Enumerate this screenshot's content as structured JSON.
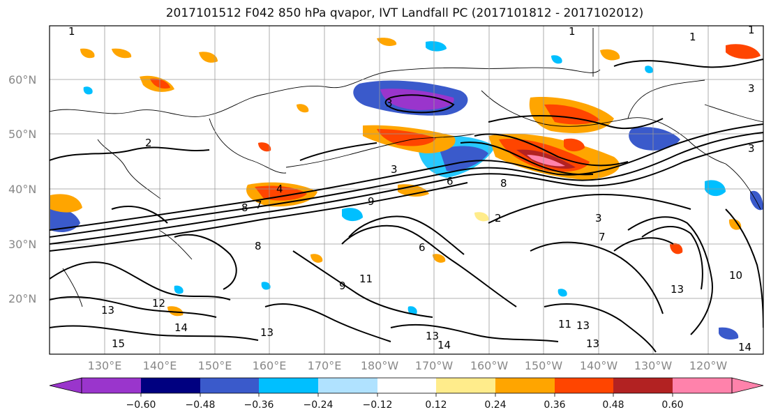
{
  "title": "2017101512 F042 850 hPa qvapor, IVT Landfall PC (2017101812 - 2017102012)",
  "lat_labels": [
    "60°N",
    "50°N",
    "40°N",
    "30°N",
    "20°N"
  ],
  "lon_labels": [
    "130°E",
    "140°E",
    "150°E",
    "160°E",
    "170°E",
    "180°W",
    "170°W",
    "160°W",
    "150°W",
    "140°W",
    "130°W",
    "120°W"
  ],
  "colorbar": {
    "colors": [
      "#9a35cc",
      "#000080",
      "#3a5acb",
      "#00bfff",
      "#b0e2ff",
      "#ffffff",
      "#ffec8b",
      "#ffa500",
      "#ff4500",
      "#b22222",
      "#ff82ab"
    ],
    "tick_labels": [
      "−0.60",
      "−0.48",
      "−0.36",
      "−0.24",
      "−0.12",
      "0.12",
      "0.24",
      "0.36",
      "0.48",
      "0.60"
    ]
  },
  "contour_labels": [
    "1",
    "1",
    "1",
    "1",
    "3",
    "3",
    "2",
    "3",
    "3",
    "4",
    "8",
    "7",
    "9",
    "8",
    "6",
    "2",
    "3",
    "9",
    "11",
    "13",
    "15",
    "12",
    "14",
    "13",
    "13",
    "14",
    "11",
    "13",
    "13",
    "13",
    "14",
    "7",
    "6",
    "8",
    "10"
  ]
}
